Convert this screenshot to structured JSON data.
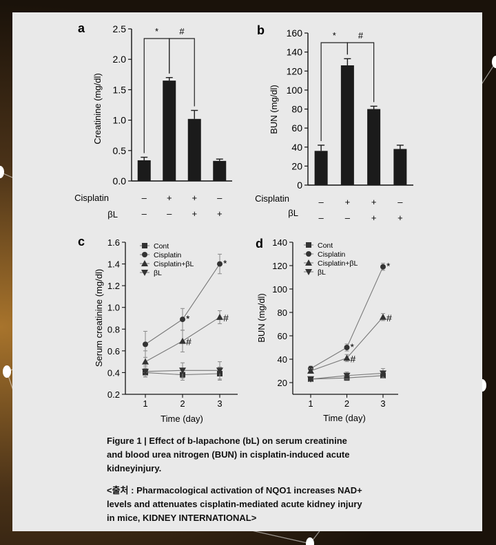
{
  "background": {
    "accent": "#f2b54a",
    "panel": "#e9e9e9"
  },
  "panels": {
    "a": {
      "letter": "a",
      "chart_data": {
        "type": "bar",
        "ylabel": "Creatinine (mg/dl)",
        "ylim": [
          0,
          2.5
        ],
        "yticks": [
          "0.0",
          "0.5",
          "1.0",
          "1.5",
          "2.0",
          "2.5"
        ],
        "groups": [
          "1",
          "2",
          "3",
          "4"
        ],
        "values": [
          0.34,
          1.65,
          1.02,
          0.33
        ],
        "errors": [
          0.05,
          0.05,
          0.14,
          0.03
        ],
        "row1_label": "Cisplatin",
        "row1": [
          "–",
          "+",
          "+",
          "–"
        ],
        "row2_label": "βL",
        "row2": [
          "–",
          "–",
          "+",
          "+"
        ],
        "sig": [
          {
            "from": 0,
            "to": 1,
            "label": "*"
          },
          {
            "from": 1,
            "to": 2,
            "label": "#"
          }
        ]
      }
    },
    "b": {
      "letter": "b",
      "chart_data": {
        "type": "bar",
        "ylabel": "BUN (mg/dl)",
        "ylim": [
          0,
          160
        ],
        "yticks": [
          "0",
          "20",
          "40",
          "60",
          "80",
          "100",
          "120",
          "140",
          "160"
        ],
        "groups": [
          "1",
          "2",
          "3",
          "4"
        ],
        "values": [
          36,
          126,
          80,
          38
        ],
        "errors": [
          6,
          7,
          3,
          4
        ],
        "row1_label": "Cisplatin",
        "row1": [
          "–",
          "+",
          "+",
          "–"
        ],
        "row2_label": "βL",
        "row2": [
          "–",
          "–",
          "+",
          "+"
        ],
        "sig": [
          {
            "from": 0,
            "to": 1,
            "label": "*"
          },
          {
            "from": 1,
            "to": 2,
            "label": "#"
          }
        ]
      }
    },
    "c": {
      "letter": "c",
      "chart_data": {
        "type": "line",
        "ylabel": "Serum creatinine (mg/dl)",
        "xlabel": "Time (day)",
        "x": [
          1,
          2,
          3
        ],
        "xticks": [
          "1",
          "2",
          "3"
        ],
        "ylim": [
          0.2,
          1.6
        ],
        "yticks": [
          "0.2",
          "0.4",
          "0.6",
          "0.8",
          "1.0",
          "1.2",
          "1.4",
          "1.6"
        ],
        "series": [
          {
            "name": "Cont",
            "marker": "square",
            "values": [
              0.4,
              0.38,
              0.39
            ],
            "errors": [
              0.04,
              0.05,
              0.06
            ]
          },
          {
            "name": "Cisplatin",
            "marker": "circle",
            "values": [
              0.66,
              0.89,
              1.4
            ],
            "errors": [
              0.12,
              0.1,
              0.09
            ],
            "marks": [
              "",
              "*",
              "*"
            ]
          },
          {
            "name": "Cisplatin+βL",
            "marker": "triangle-up",
            "values": [
              0.5,
              0.69,
              0.91
            ],
            "errors": [
              0.1,
              0.1,
              0.06
            ],
            "marks": [
              "",
              "#",
              "#"
            ]
          },
          {
            "name": "βL",
            "marker": "triangle-down",
            "values": [
              0.41,
              0.42,
              0.42
            ],
            "errors": [
              0.05,
              0.07,
              0.08
            ]
          }
        ]
      }
    },
    "d": {
      "letter": "d",
      "chart_data": {
        "type": "line",
        "ylabel": "BUN (mg/dl)",
        "xlabel": "Time (day)",
        "x": [
          1,
          2,
          3
        ],
        "xticks": [
          "1",
          "2",
          "3"
        ],
        "ylim": [
          10,
          140
        ],
        "yticks": [
          "20",
          "40",
          "60",
          "80",
          "100",
          "120",
          "140"
        ],
        "series": [
          {
            "name": "Cont",
            "marker": "square",
            "values": [
              23,
              24,
              26
            ],
            "errors": [
              2,
              2,
              2
            ]
          },
          {
            "name": "Cisplatin",
            "marker": "circle",
            "values": [
              32,
              50,
              119
            ],
            "errors": [
              2,
              3,
              3
            ],
            "marks": [
              "",
              "*",
              "*"
            ]
          },
          {
            "name": "Cisplatin+βL",
            "marker": "triangle-up",
            "values": [
              30,
              41,
              76
            ],
            "errors": [
              2,
              3,
              3
            ],
            "marks": [
              "",
              "#",
              "#"
            ]
          },
          {
            "name": "βL",
            "marker": "triangle-down",
            "values": [
              23,
              26,
              28
            ],
            "errors": [
              2,
              3,
              4
            ]
          }
        ]
      }
    }
  },
  "caption": {
    "line1": "Figure 1 | Effect of b-lapachone (bL) on serum creatinine",
    "line2": "and blood urea nitrogen (BUN) in cisplatin-induced acute",
    "line3": "kidneyinjury.",
    "source1": "<출처 : Pharmacological activation of NQO1 increases NAD+",
    "source2": "levels and attenuates cisplatin-mediated acute kidney injury",
    "source3": "in mice, KIDNEY INTERNATIONAL>"
  }
}
